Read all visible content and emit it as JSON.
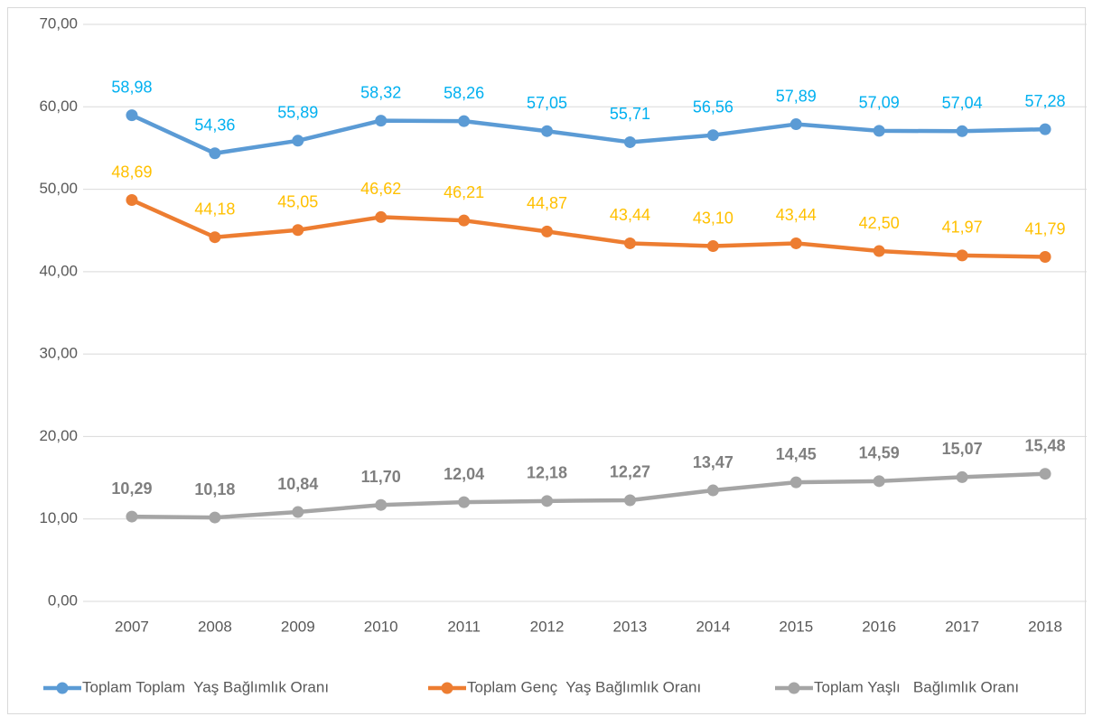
{
  "chart_data": {
    "type": "line",
    "categories": [
      "2007",
      "2008",
      "2009",
      "2010",
      "2011",
      "2012",
      "2013",
      "2014",
      "2015",
      "2016",
      "2017",
      "2018"
    ],
    "series": [
      {
        "name": "Toplam Toplam  Yaş Bağlımlık Oranı",
        "color": "#5b9bd5",
        "label_color": "#00b0f0",
        "values": [
          58.98,
          54.36,
          55.89,
          58.32,
          58.26,
          57.05,
          55.71,
          56.56,
          57.89,
          57.09,
          57.04,
          57.28
        ],
        "value_labels": [
          "58,98",
          "54,36",
          "55,89",
          "58,32",
          "58,26",
          "57,05",
          "55,71",
          "56,56",
          "57,89",
          "57,09",
          "57,04",
          "57,28"
        ]
      },
      {
        "name": "Toplam Genç  Yaş Bağlımlık Oranı",
        "color": "#ed7d31",
        "label_color": "#ffc000",
        "values": [
          48.69,
          44.18,
          45.05,
          46.62,
          46.21,
          44.87,
          43.44,
          43.1,
          43.44,
          42.5,
          41.97,
          41.79
        ],
        "value_labels": [
          "48,69",
          "44,18",
          "45,05",
          "46,62",
          "46,21",
          "44,87",
          "43,44",
          "43,10",
          "43,44",
          "42,50",
          "41,97",
          "41,79"
        ]
      },
      {
        "name": "Toplam Yaşlı   Bağlımlık Oranı",
        "color": "#a5a5a5",
        "label_color": "#7f7f7f",
        "values": [
          10.29,
          10.18,
          10.84,
          11.7,
          12.04,
          12.18,
          12.27,
          13.47,
          14.45,
          14.59,
          15.07,
          15.48
        ],
        "value_labels": [
          "10,29",
          "10,18",
          "10,84",
          "11,70",
          "12,04",
          "12,18",
          "12,27",
          "13,47",
          "14,45",
          "14,59",
          "15,07",
          "15,48"
        ]
      }
    ],
    "ylim": [
      0,
      70
    ],
    "yticks": [
      {
        "value": 0,
        "label": "0,00"
      },
      {
        "value": 10,
        "label": "10,00"
      },
      {
        "value": 20,
        "label": "20,00"
      },
      {
        "value": 30,
        "label": "30,00"
      },
      {
        "value": 40,
        "label": "40,00"
      },
      {
        "value": 50,
        "label": "50,00"
      },
      {
        "value": 60,
        "label": "60,00"
      },
      {
        "value": 70,
        "label": "70,00"
      }
    ],
    "grid": true,
    "legend": "bottom"
  }
}
